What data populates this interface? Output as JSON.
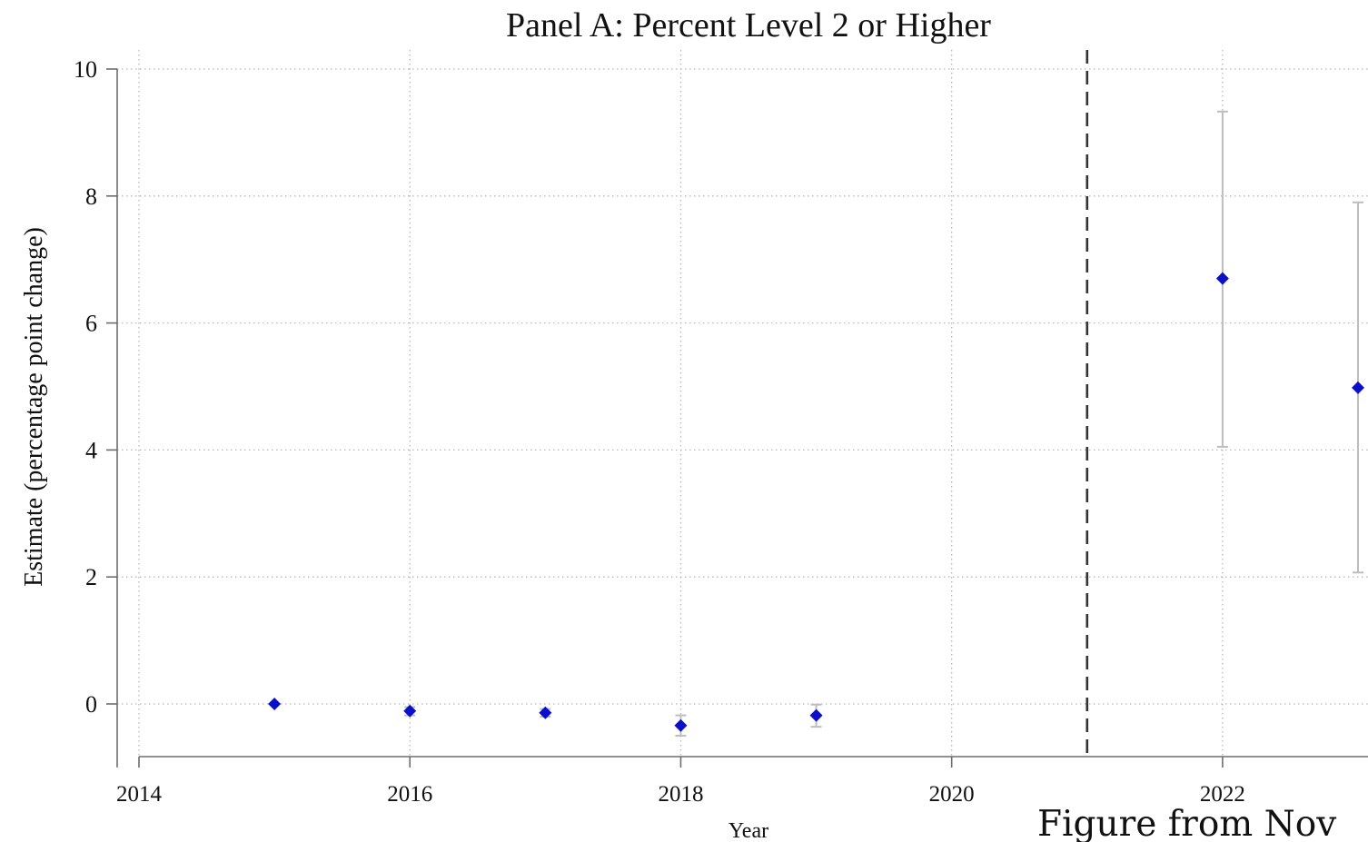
{
  "chart_data": {
    "type": "scatter",
    "title": "Panel A: Percent Level 2 or Higher",
    "xlabel": "Year",
    "ylabel": "Estimate (percentage point change)",
    "xlim": [
      2014,
      2023
    ],
    "ylim": [
      -0.8,
      10
    ],
    "x_ticks": [
      2014,
      2016,
      2018,
      2020,
      2022
    ],
    "y_ticks": [
      0,
      2,
      4,
      6,
      8,
      10
    ],
    "grid": true,
    "grid_style": "dotted",
    "reference_line": {
      "x": 2021,
      "style": "dashed"
    },
    "series": [
      {
        "marker": "diamond",
        "color": "#0a10c8",
        "error_bar_color": "#bdbdbd",
        "points": [
          {
            "x": 2015,
            "y": 0.0,
            "lo": 0.0,
            "hi": 0.0
          },
          {
            "x": 2016,
            "y": -0.11,
            "lo": -0.18,
            "hi": -0.05
          },
          {
            "x": 2017,
            "y": -0.14,
            "lo": -0.2,
            "hi": -0.08
          },
          {
            "x": 2018,
            "y": -0.34,
            "lo": -0.5,
            "hi": -0.18
          },
          {
            "x": 2019,
            "y": -0.18,
            "lo": -0.36,
            "hi": -0.01
          },
          {
            "x": 2022,
            "y": 6.7,
            "lo": 4.05,
            "hi": 9.33
          },
          {
            "x": 2023,
            "y": 4.98,
            "lo": 2.07,
            "hi": 7.9
          }
        ]
      }
    ]
  },
  "caption_fragment": "Figure from Nov"
}
